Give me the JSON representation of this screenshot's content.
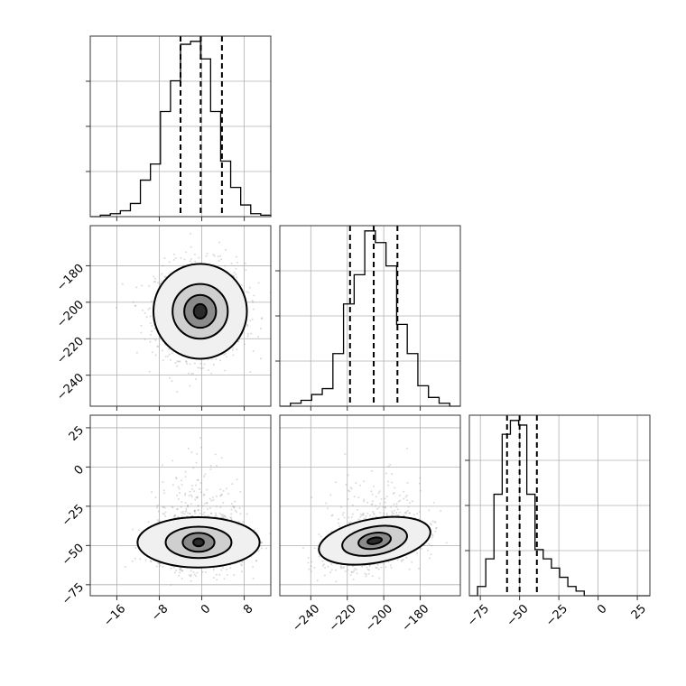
{
  "chart_data": {
    "type": "corner",
    "grid": true,
    "parameters": [
      {
        "range": [
          -21,
          13
        ],
        "ticks": [
          -16,
          -8,
          0,
          8
        ],
        "tick_labels": [
          "−16",
          "−8",
          "0",
          "8"
        ],
        "quantiles": [
          -4.0,
          -0.2,
          3.8
        ],
        "hist": [
          0,
          1,
          2,
          4,
          9,
          25,
          36,
          72,
          93,
          118,
          120,
          108,
          72,
          38,
          20,
          8,
          2,
          1
        ]
      },
      {
        "range": [
          -257,
          -158
        ],
        "ticks": [
          -240,
          -220,
          -200,
          -180
        ],
        "tick_labels": [
          "−240",
          "−220",
          "−200",
          "−180"
        ],
        "quantiles": [
          -218.5,
          -205.5,
          -192.5
        ],
        "hist": [
          0,
          1,
          2,
          4,
          6,
          18,
          35,
          45,
          60,
          56,
          48,
          28,
          18,
          7,
          3,
          1,
          0
        ]
      },
      {
        "range": [
          -82,
          33
        ],
        "ticks": [
          -75,
          -50,
          -25,
          0,
          25
        ],
        "tick_labels": [
          "−75",
          "−50",
          "−25",
          "0",
          "25"
        ],
        "quantiles": [
          -58,
          -50,
          -39
        ],
        "hist": [
          0,
          2,
          8,
          22,
          35,
          38,
          37,
          22,
          10,
          8,
          6,
          4,
          2,
          1,
          0,
          0,
          0,
          0,
          0,
          0,
          0,
          0
        ]
      }
    ]
  }
}
